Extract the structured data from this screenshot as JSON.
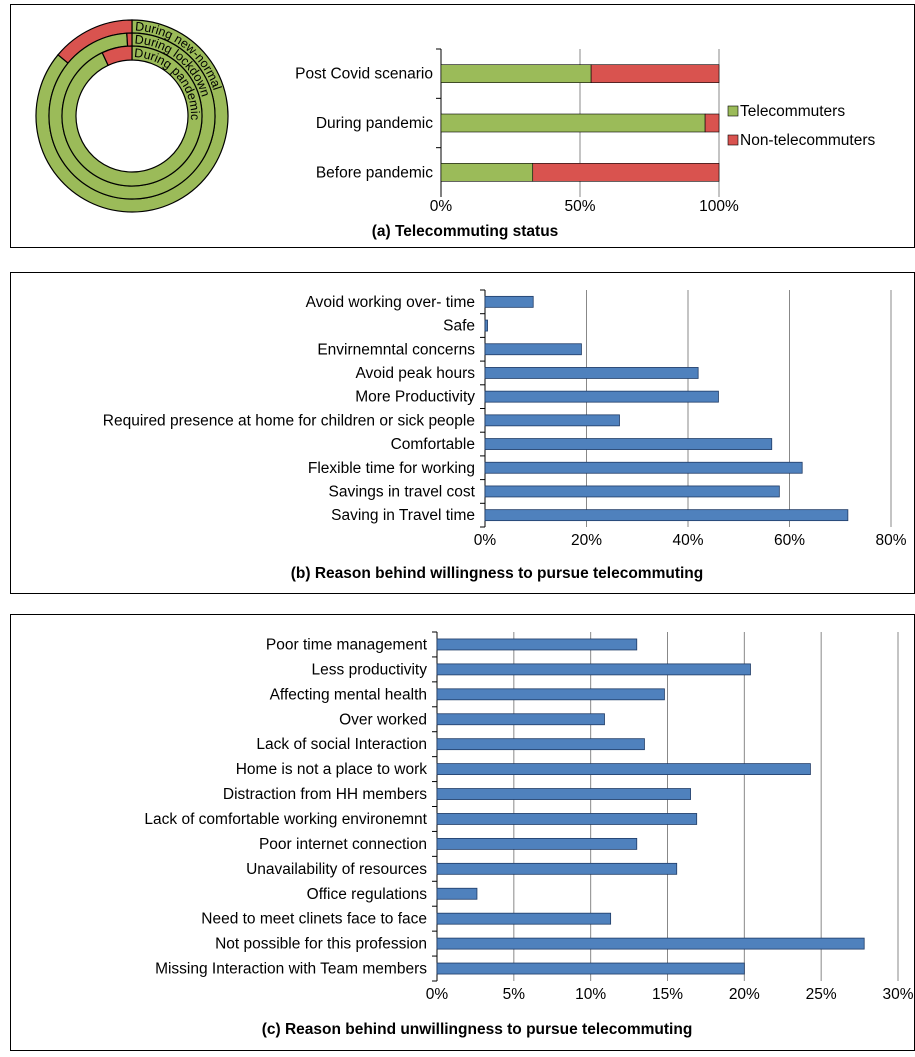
{
  "colors": {
    "telecommuters": "#9bbb59",
    "non_telecommuters": "#d9534f",
    "bar_blue": "#4f81bd",
    "grid": "#888888"
  },
  "chart_data": [
    {
      "type": "pie",
      "variant": "multi-ring donut",
      "rings": [
        {
          "name": "During new-normal",
          "values": [
            86,
            14
          ]
        },
        {
          "name": "During lockdown",
          "values": [
            99,
            1
          ]
        },
        {
          "name": "During pandemic",
          "values": [
            93,
            7
          ]
        }
      ],
      "series_names": [
        "Telecommuters",
        "Non-telecommuters"
      ]
    },
    {
      "type": "bar",
      "orientation": "horizontal",
      "stacked": "percent",
      "title": "(a) Telecommuting status",
      "categories": [
        "Post Covid scenario",
        "During pandemic",
        "Before pandemic"
      ],
      "series": [
        {
          "name": "Telecommuters",
          "values": [
            54,
            95,
            33
          ]
        },
        {
          "name": "Non-telecommuters",
          "values": [
            46,
            5,
            67
          ]
        }
      ],
      "ticks": [
        "0%",
        "50%",
        "100%"
      ],
      "xlim": [
        0,
        100
      ],
      "legend": "right"
    },
    {
      "type": "bar",
      "orientation": "horizontal",
      "title": "(b) Reason behind willingness to pursue telecommuting",
      "categories": [
        "Avoid working over- time",
        "Safe",
        "Envirnemntal  concerns",
        "Avoid peak hours",
        "More Productivity",
        "Required presence at home for children or sick people",
        "Comfortable",
        "Flexible time for working",
        "Savings in travel cost",
        "Saving in Travel time"
      ],
      "values": [
        9.5,
        0.5,
        19,
        42,
        46,
        26.5,
        56.5,
        62.5,
        58,
        71.5
      ],
      "ticks": [
        "0%",
        "20%",
        "40%",
        "60%",
        "80%"
      ],
      "xlim": [
        0,
        80
      ],
      "grid": true
    },
    {
      "type": "bar",
      "orientation": "horizontal",
      "title": "(c) Reason behind unwillingness to pursue telecommuting",
      "categories": [
        "Poor time management",
        "Less productivity",
        "Affecting mental health",
        "Over worked",
        "Lack of social Interaction",
        "Home is not a place to work",
        "Distraction from HH members",
        "Lack of comfortable working environemnt",
        "Poor internet connection",
        "Unavailability of resources",
        "Office regulations",
        "Need to meet clinets face to face",
        "Not possible for this profession",
        "Missing Interaction with Team members"
      ],
      "values": [
        13,
        20.4,
        14.8,
        10.9,
        13.5,
        24.3,
        16.5,
        16.9,
        13,
        15.6,
        2.6,
        11.3,
        27.8,
        20
      ],
      "ticks": [
        "0%",
        "5%",
        "10%",
        "15%",
        "20%",
        "25%",
        "30%"
      ],
      "xlim": [
        0,
        30
      ],
      "grid": true
    }
  ]
}
